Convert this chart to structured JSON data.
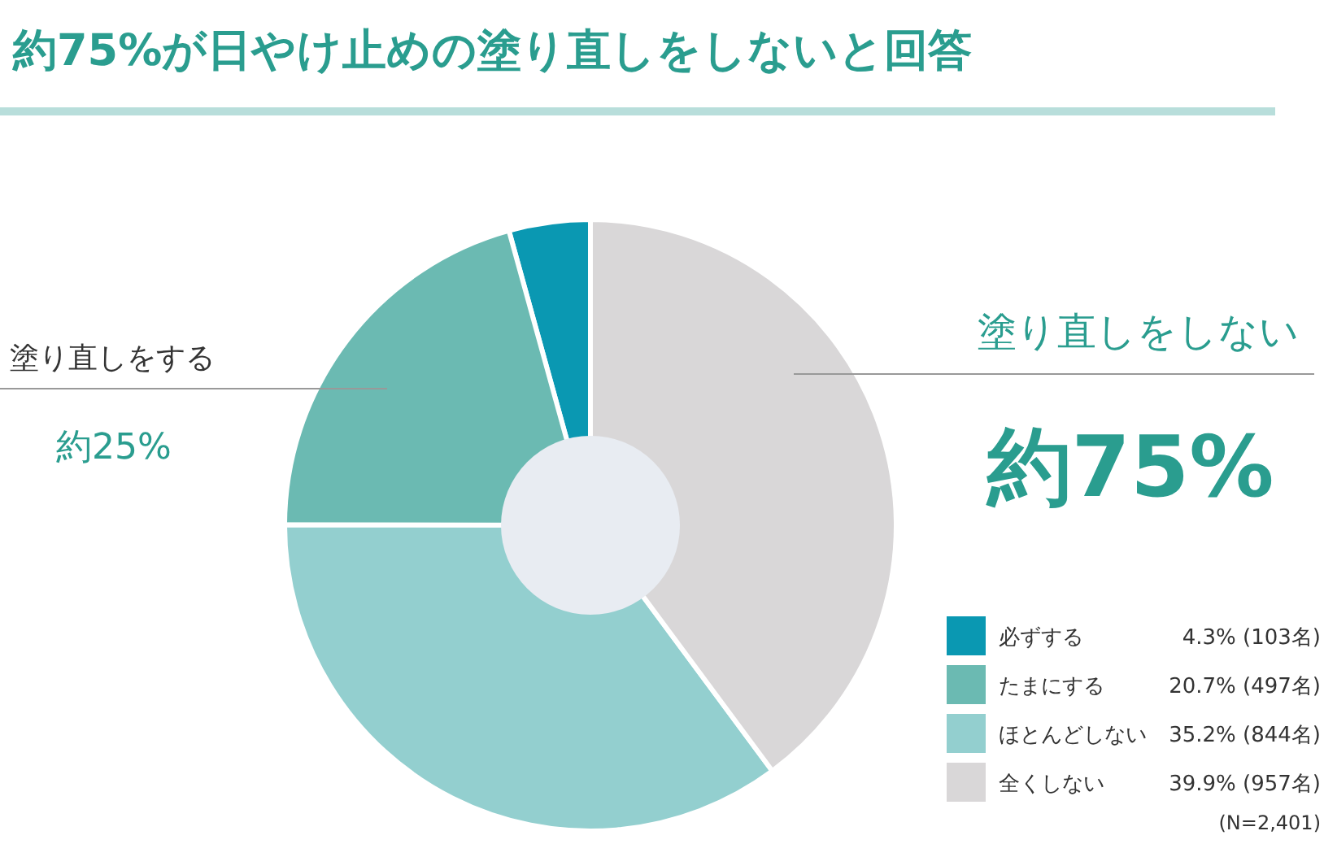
{
  "chart_data": {
    "type": "donut",
    "title": "約75%が日やけ止めの塗り直しをしないと回答",
    "categories": [
      "必ずする",
      "たまにする",
      "ほとんどしない",
      "全くしない"
    ],
    "values": [
      4.3,
      20.7,
      35.2,
      39.9
    ],
    "colors": [
      "#0a98b2",
      "#6bbab2",
      "#93cfcf",
      "#d9d7d8"
    ],
    "value_labels": [
      "4.3% (103名)",
      "20.7% (497名)",
      "35.2% (844名)",
      "39.9% (957名)"
    ],
    "legend": "bottom right",
    "annotations": [
      "塗り直しをする",
      "約25%",
      "塗り直しをしない",
      "約75%",
      "(N=2,401)"
    ]
  }
}
